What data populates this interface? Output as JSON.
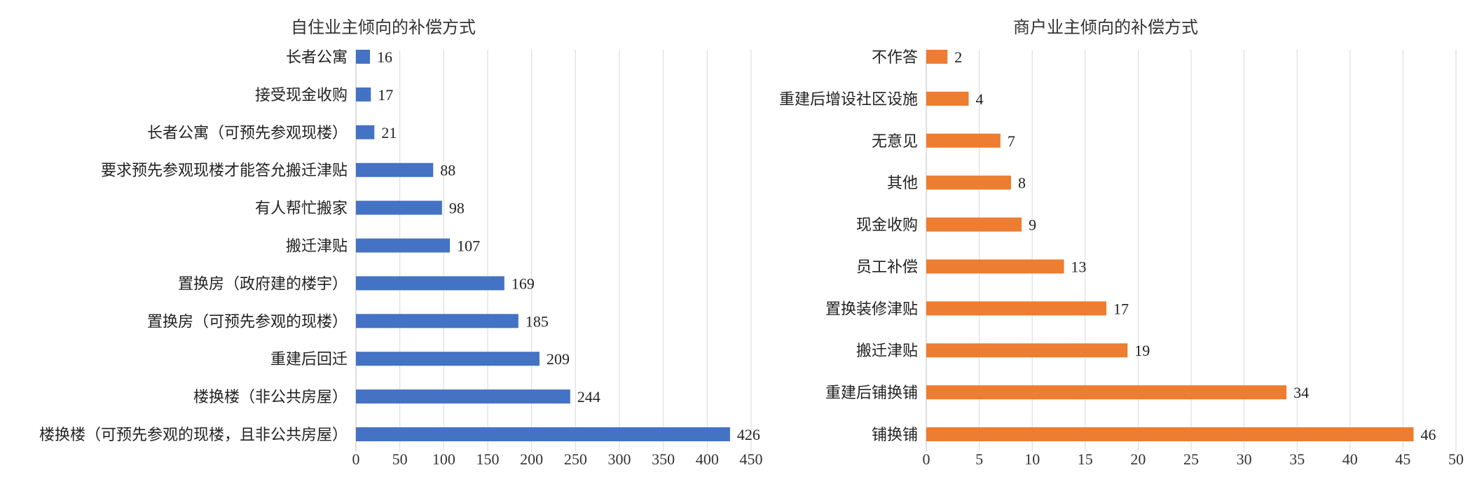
{
  "chart_data": [
    {
      "type": "bar",
      "orientation": "horizontal",
      "title": "自住业主倾向的补偿方式",
      "color": "#4472C4",
      "categories": [
        "长者公寓",
        "接受现金收购",
        "长者公寓（可预先参观现楼）",
        "要求预先参观现楼才能答允搬迁津贴",
        "有人帮忙搬家",
        "搬迁津贴",
        "置换房（政府建的楼宇）",
        "置换房（可预先参观的现楼）",
        "重建后回迁",
        "楼换楼（非公共房屋）",
        "楼换楼（可预先参观的现楼，且非公共房屋）"
      ],
      "values": [
        16,
        17,
        21,
        88,
        98,
        107,
        169,
        185,
        209,
        244,
        426
      ],
      "xlim": [
        0,
        450
      ],
      "xticks": [
        0,
        50,
        100,
        150,
        200,
        250,
        300,
        350,
        400,
        450
      ],
      "grid": true,
      "data_labels": true
    },
    {
      "type": "bar",
      "orientation": "horizontal",
      "title": "商户业主倾向的补偿方式",
      "color": "#ED7D31",
      "categories": [
        "不作答",
        "重建后增设社区设施",
        "无意见",
        "其他",
        "现金收购",
        "员工补偿",
        "置换装修津贴",
        "搬迁津贴",
        "重建后铺换铺",
        "铺换铺"
      ],
      "values": [
        2,
        4,
        7,
        8,
        9,
        13,
        17,
        19,
        34,
        46
      ],
      "xlim": [
        0,
        50
      ],
      "xticks": [
        0,
        5,
        10,
        15,
        20,
        25,
        30,
        35,
        40,
        45,
        50
      ],
      "grid": true,
      "data_labels": true
    }
  ]
}
